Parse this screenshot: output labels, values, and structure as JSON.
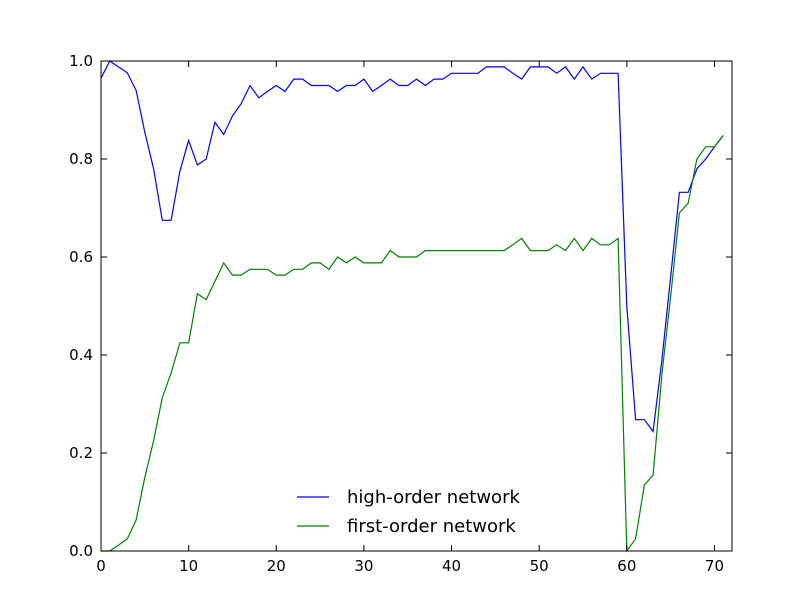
{
  "chart_data": {
    "type": "line",
    "xlim": [
      0,
      72
    ],
    "ylim": [
      0,
      1.0
    ],
    "xticks": [
      "0",
      "10",
      "20",
      "30",
      "40",
      "50",
      "60",
      "70"
    ],
    "yticks": [
      "0.0",
      "0.2",
      "0.4",
      "0.6",
      "0.8",
      "1.0"
    ],
    "legend_position": "lower-center",
    "grid": false,
    "series": [
      {
        "name": "high-order network",
        "color": "#0000ff",
        "x": [
          0,
          1,
          2,
          3,
          4,
          5,
          6,
          7,
          8,
          9,
          10,
          11,
          12,
          13,
          14,
          15,
          16,
          17,
          18,
          19,
          20,
          21,
          22,
          23,
          24,
          25,
          26,
          27,
          28,
          29,
          30,
          31,
          32,
          33,
          34,
          35,
          36,
          37,
          38,
          39,
          40,
          41,
          42,
          43,
          44,
          45,
          46,
          47,
          48,
          49,
          50,
          51,
          52,
          53,
          54,
          55,
          56,
          57,
          58,
          59,
          60,
          61,
          62,
          63,
          64,
          65,
          66,
          67,
          68,
          69,
          70,
          71
        ],
        "y": [
          0.965,
          1.0,
          0.988,
          0.976,
          0.94,
          0.855,
          0.78,
          0.675,
          0.675,
          0.775,
          0.838,
          0.788,
          0.8,
          0.875,
          0.85,
          0.888,
          0.913,
          0.95,
          0.925,
          0.938,
          0.95,
          0.938,
          0.963,
          0.963,
          0.95,
          0.95,
          0.95,
          0.938,
          0.95,
          0.95,
          0.963,
          0.938,
          0.95,
          0.963,
          0.95,
          0.95,
          0.963,
          0.95,
          0.963,
          0.963,
          0.975,
          0.975,
          0.975,
          0.975,
          0.988,
          0.988,
          0.988,
          0.975,
          0.963,
          0.988,
          0.988,
          0.988,
          0.975,
          0.988,
          0.963,
          0.988,
          0.963,
          0.975,
          0.975,
          0.975,
          0.5,
          0.268,
          0.268,
          0.244,
          0.39,
          0.56,
          0.732,
          0.732,
          0.78,
          0.8,
          0.825,
          0.848
        ]
      },
      {
        "name": "first-order network",
        "color": "#008000",
        "x": [
          0,
          1,
          2,
          3,
          4,
          5,
          6,
          7,
          8,
          9,
          10,
          11,
          12,
          13,
          14,
          15,
          16,
          17,
          18,
          19,
          20,
          21,
          22,
          23,
          24,
          25,
          26,
          27,
          28,
          29,
          30,
          31,
          32,
          33,
          34,
          35,
          36,
          37,
          38,
          39,
          40,
          41,
          42,
          43,
          44,
          45,
          46,
          47,
          48,
          49,
          50,
          51,
          52,
          53,
          54,
          55,
          56,
          57,
          58,
          59,
          60,
          61,
          62,
          63,
          64,
          65,
          66,
          67,
          68,
          69,
          70,
          71
        ],
        "y": [
          0.0,
          0.0,
          0.012,
          0.025,
          0.063,
          0.15,
          0.225,
          0.313,
          0.363,
          0.425,
          0.425,
          0.525,
          0.513,
          0.55,
          0.588,
          0.563,
          0.563,
          0.575,
          0.575,
          0.575,
          0.563,
          0.563,
          0.575,
          0.575,
          0.588,
          0.588,
          0.575,
          0.6,
          0.588,
          0.6,
          0.588,
          0.588,
          0.588,
          0.613,
          0.6,
          0.6,
          0.6,
          0.613,
          0.613,
          0.613,
          0.613,
          0.613,
          0.613,
          0.613,
          0.613,
          0.613,
          0.613,
          0.625,
          0.638,
          0.613,
          0.613,
          0.613,
          0.625,
          0.613,
          0.638,
          0.613,
          0.638,
          0.625,
          0.625,
          0.638,
          0.0,
          0.025,
          0.135,
          0.155,
          0.36,
          0.52,
          0.69,
          0.71,
          0.8,
          0.825,
          0.825,
          0.848
        ]
      }
    ]
  }
}
